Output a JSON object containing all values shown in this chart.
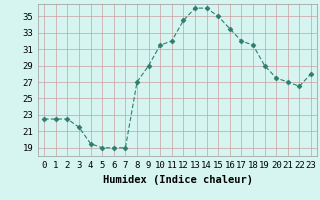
{
  "x": [
    0,
    1,
    2,
    3,
    4,
    5,
    6,
    7,
    8,
    9,
    10,
    11,
    12,
    13,
    14,
    15,
    16,
    17,
    18,
    19,
    20,
    21,
    22,
    23
  ],
  "y": [
    22.5,
    22.5,
    22.5,
    21.5,
    19.5,
    19.0,
    19.0,
    19.0,
    27.0,
    29.0,
    31.5,
    32.0,
    34.5,
    36.0,
    36.0,
    35.0,
    33.5,
    32.0,
    31.5,
    29.0,
    27.5,
    27.0,
    26.5,
    28.0
  ],
  "line_color": "#2d7d6e",
  "marker": "D",
  "marker_size": 2.5,
  "bg_color": "#d6f5f0",
  "grid_color": "#c8a0a0",
  "xlabel": "Humidex (Indice chaleur)",
  "xlabel_fontsize": 7.5,
  "ylabel_ticks": [
    19,
    21,
    23,
    25,
    27,
    29,
    31,
    33,
    35
  ],
  "ylim": [
    18.0,
    36.5
  ],
  "xlim": [
    -0.5,
    23.5
  ],
  "tick_fontsize": 6.5
}
